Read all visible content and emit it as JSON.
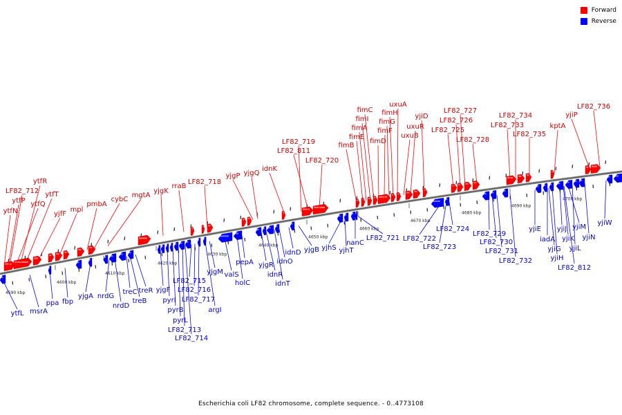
{
  "legend": {
    "forward_label": "Forward",
    "reverse_label": "Reverse",
    "forward_color": "#ff0000",
    "reverse_color": "#0000ff"
  },
  "caption": "Escherichia coli LF82 chromosome, complete sequence. - 0..4773108",
  "scale": {
    "ticks": [
      "4590 kbp",
      "4600 kbp",
      "4610 kbp",
      "4620 kbp",
      "4630 kbp",
      "4640 kbp",
      "4650 kbp",
      "4660 kbp",
      "4670 kbp",
      "4680 kbp",
      "4690 kbp",
      "4700 kbp"
    ]
  },
  "forward_genes": [
    "ytfN",
    "LF82_712",
    "ytfP",
    "ytfQ",
    "ytfR",
    "ytfT",
    "yjfF",
    "mpl",
    "pmbA",
    "cybC",
    "mgtA",
    "yjgK",
    "rraB",
    "LF82_718",
    "yjgP",
    "yjgQ",
    "idnK",
    "LF82_719",
    "LF82_811",
    "LF82_720",
    "fimB",
    "fimE",
    "fimA",
    "fimI",
    "fimC",
    "fimD",
    "fimF",
    "fimG",
    "fimH",
    "uxuA",
    "uxuB",
    "uxuR",
    "yjiD",
    "LF82_725",
    "LF82_726",
    "LF82_727",
    "LF82_728",
    "LF82_733",
    "LF82_734",
    "LF82_735",
    "kptA",
    "yjiP",
    "LF82_736"
  ],
  "reverse_genes": [
    "ytfL",
    "msrA",
    "ppa",
    "fbp",
    "yjgA",
    "nrdG",
    "nrdD",
    "treC",
    "treB",
    "treR",
    "yjgF",
    "pyrI",
    "pyrB",
    "pyrL",
    "LF82_713",
    "LF82_714",
    "LF82_715",
    "LF82_716",
    "LF82_717",
    "argI",
    "yjgM",
    "valS",
    "holC",
    "pepA",
    "yjgR",
    "idnR",
    "idnT",
    "idnO",
    "idnD",
    "yjgB",
    "yjhS",
    "yjhT",
    "nanC",
    "LF82_721",
    "LF82_722",
    "LF82_723",
    "LF82_724",
    "LF82_729",
    "LF82_730",
    "LF82_731",
    "LF82_732",
    "yjiE",
    "iadA",
    "yjiG",
    "yjiH",
    "yjiJ",
    "yjiK",
    "yjiM",
    "yjiL",
    "LF82_812",
    "yjiN",
    "yjiW"
  ]
}
